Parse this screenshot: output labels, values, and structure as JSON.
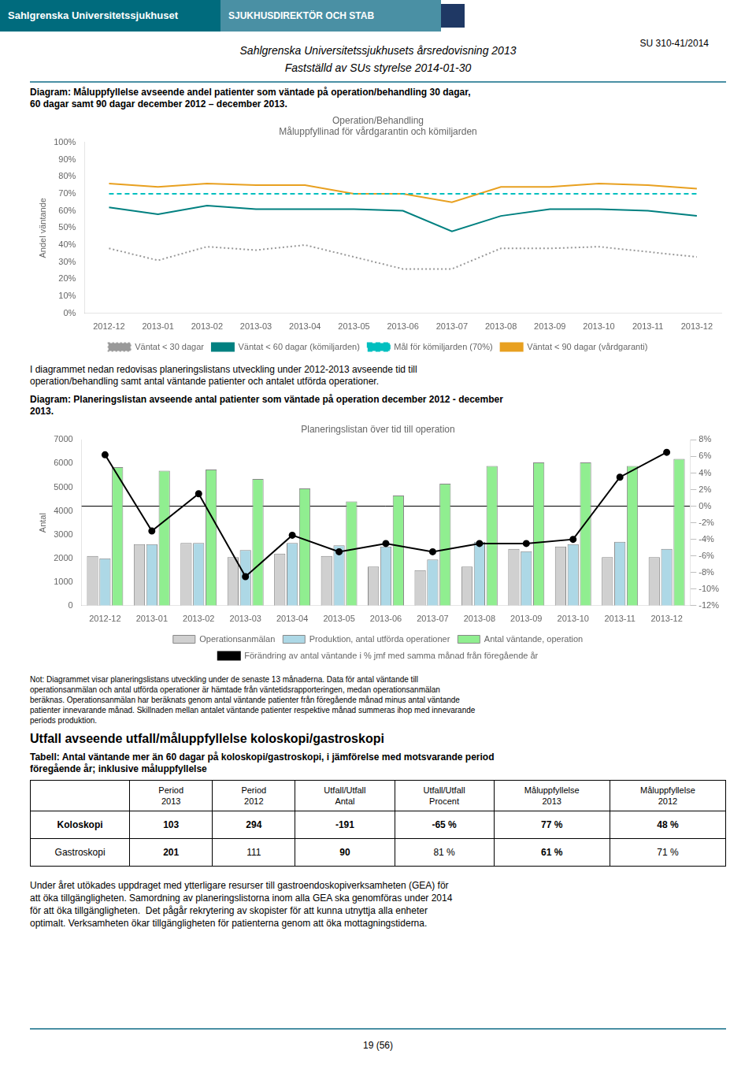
{
  "page": {
    "header_text1": "Sahlgrenska Universitetssjukhuset",
    "header_text2": "SJUKHUSDIREKTÖR OCH STAB",
    "doc_ref": "SU 310-41/2014",
    "title_line1": "Sahlgrenska Universitetssjukhusets årsredovisning 2013",
    "title_line2": "Fastställd av SUs styrelse 2014-01-30",
    "section1_title": "Diagram: Måluppfyllelse avseende andel patienter som väntade på operation/behandling 30 dagar,\n60 dagar samt 90 dagar december 2012 – december 2013.",
    "intertext": "I diagrammet nedan redovisas planeringslistans utveckling under 2012-2013 avseende tid till\noperation/behandling samt antal väntande patienter och antalet utförda operationer.",
    "section2_title": "Diagram: Planeringslistan avseende antal patienter som väntade på operation december 2012 - december\n2013.",
    "note_text": "Not: Diagrammet visar planeringslistans utveckling under de senaste 13 månaderna. Data för antal väntande till\noperationsanmälan och antal utförda operationer är hämtade från väntetidsrapporteringen, medan operationsanmälan\nberäknas. Operationsanmälan har beräknats genom antal väntande patienter från föregående månad minus antal väntande\npatienter innevarande månad. Skillnaden mellan antalet väntande patienter respektive månad summeras ihop med innevarande\nperiods produktion.",
    "section3_title": "Utfall avseende utfall/måluppfyllelse koloskopi/gastroskopi",
    "section3_subtitle": "Tabell: Antal väntande mer än 60 dagar på koloskopi/gastroskopi, i jämförelse med motsvarande period\nföregående år; inklusive måluppfyllelse",
    "closing_text": "Under året utökades uppdraget med ytterligare resurser till gastroendoskopiverksamheten (GEA) för\natt öka tillgängligheten. Samordning av planeringslistorna inom alla GEA ska genomföras under 2014\nför att öka tillgängligheten.  Det pågår rekrytering av skopister för att kunna utnyttja alla enheter\noptimalt. Verksamheten ökar tillgängligheten för patienterna genom att öka mottagningstiderna.",
    "page_number": "19 (56)"
  },
  "chart_data": [
    {
      "type": "line",
      "title": "Operation/Behandling\nMåluppfyllinad för vårdgarantin och kömiljarden",
      "ylabel": "Andel väntande",
      "categories": [
        "2012-12",
        "2013-01",
        "2013-02",
        "2013-03",
        "2013-04",
        "2013-05",
        "2013-06",
        "2013-07",
        "2013-08",
        "2013-09",
        "2013-10",
        "2013-11",
        "2013-12"
      ],
      "series": [
        {
          "name": "Väntat < 30 dagar",
          "color": "#999999",
          "line_style": "dotted",
          "marker": "none",
          "values": [
            38,
            31,
            39,
            37,
            40,
            33,
            26,
            26,
            38,
            38,
            39,
            36,
            33
          ]
        },
        {
          "name": "Väntat < 60 dagar (kömiljarden)",
          "color": "#008080",
          "line_style": "solid",
          "marker": "none",
          "values": [
            62,
            58,
            63,
            61,
            61,
            61,
            60,
            48,
            57,
            61,
            61,
            60,
            57
          ]
        },
        {
          "name": "Mål för kömiljarden (70%)",
          "color": "#00BFBF",
          "line_style": "dashed",
          "marker": "none",
          "values": [
            70,
            70,
            70,
            70,
            70,
            70,
            70,
            70,
            70,
            70,
            70,
            70,
            70
          ]
        },
        {
          "name": "Väntat < 90 dagar (vårdgaranti)",
          "color": "#E8A020",
          "line_style": "solid",
          "marker": "none",
          "values": [
            76,
            74,
            76,
            75,
            75,
            70,
            70,
            65,
            74,
            74,
            76,
            75,
            73
          ]
        }
      ],
      "ylim": [
        0,
        100
      ],
      "yticks": [
        {
          "value": 0,
          "label": "0%"
        },
        {
          "value": 10,
          "label": "10%"
        },
        {
          "value": 20,
          "label": "20%"
        },
        {
          "value": 30,
          "label": "30%"
        },
        {
          "value": 40,
          "label": "40%"
        },
        {
          "value": 50,
          "label": "50%"
        },
        {
          "value": 60,
          "label": "60%"
        },
        {
          "value": 70,
          "label": "70%"
        },
        {
          "value": 80,
          "label": "80%"
        },
        {
          "value": 90,
          "label": "90%"
        },
        {
          "value": 100,
          "label": "100%"
        }
      ],
      "grid": false,
      "legend": "bottom"
    },
    {
      "type": "bar",
      "title": "Planeringslistan över tid till operation",
      "ylabel": "Antal",
      "categories": [
        "2012-12",
        "2013-01",
        "2013-02",
        "2013-03",
        "2013-04",
        "2013-05",
        "2013-06",
        "2013-07",
        "2013-08",
        "2013-09",
        "2013-10",
        "2013-11",
        "2013-12"
      ],
      "series": [
        {
          "name": "Operationsanmälan",
          "type": "bar",
          "color": "#d0d0d0",
          "values": [
            2100,
            2600,
            2650,
            2050,
            2200,
            2100,
            1650,
            1500,
            1650,
            2400,
            2500,
            2050,
            2050
          ]
        },
        {
          "name": "Produktion, antal utförda operationer",
          "type": "bar",
          "color": "#ADD8E6",
          "values": [
            2000,
            2600,
            2650,
            2350,
            2650,
            2550,
            2500,
            1950,
            2700,
            2300,
            2600,
            2700,
            2400
          ]
        },
        {
          "name": "Antal väntande, operation",
          "type": "bar",
          "color": "#90EE90",
          "values": [
            5850,
            5700,
            5750,
            5350,
            4950,
            4400,
            4650,
            5150,
            5900,
            6050,
            6050,
            5900,
            6200
          ]
        },
        {
          "name": "Förändring av antal väntande i % jmf med samma månad från föregående år",
          "type": "line",
          "axis": "y2",
          "color": "#000000",
          "line_style": "solid",
          "marker": "circle",
          "values": [
            6.2,
            -3.0,
            1.5,
            -8.5,
            -3.5,
            -5.5,
            -4.5,
            -5.5,
            -4.5,
            -4.5,
            -4.0,
            3.5,
            6.5
          ]
        }
      ],
      "ylim": [
        0,
        7000
      ],
      "yticks": [
        0,
        1000,
        2000,
        3000,
        4000,
        5000,
        6000,
        7000
      ],
      "y2lim": [
        -12,
        8
      ],
      "y2ticks": [
        {
          "value": -12,
          "label": "-12%"
        },
        {
          "value": -10,
          "label": "-10%"
        },
        {
          "value": -8,
          "label": "-8%"
        },
        {
          "value": -6,
          "label": "-6%"
        },
        {
          "value": -4,
          "label": "-4%"
        },
        {
          "value": -2,
          "label": "-2%"
        },
        {
          "value": 0,
          "label": "0%"
        },
        {
          "value": 2,
          "label": "2%"
        },
        {
          "value": 4,
          "label": "4%"
        },
        {
          "value": 6,
          "label": "6%"
        },
        {
          "value": 8,
          "label": "8%"
        }
      ],
      "grid": false,
      "legend": "bottom"
    }
  ],
  "table": {
    "headers": [
      null,
      "Period\n2013",
      "Period\n2012",
      "Utfall/Utfall\nAntal",
      "Utfall/Utfall\nProcent",
      "Måluppfyllelse\n2013",
      "Måluppfyllelse\n2012"
    ],
    "rows": [
      [
        "Koloskopi",
        "103",
        "294",
        "-191",
        "-65 %",
        "77 %",
        "48 %"
      ],
      [
        "Gastroskopi",
        "201",
        "111",
        "90",
        "81 %",
        "61 %",
        "71 %"
      ]
    ],
    "bold": [
      [
        true,
        true,
        true,
        true,
        true,
        true,
        true
      ],
      [
        false,
        true,
        false,
        true,
        false,
        true,
        false
      ]
    ]
  }
}
